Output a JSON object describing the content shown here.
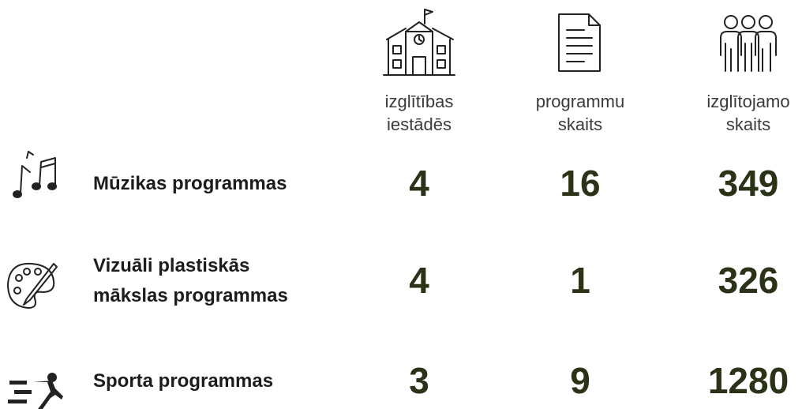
{
  "table": {
    "columns": [
      [
        "izglītības",
        "iestādēs"
      ],
      [
        "programmu",
        "skaits"
      ],
      [
        "izglītojamo",
        "skaits"
      ]
    ],
    "rows": [
      {
        "label": [
          "Mūzikas programmas"
        ],
        "values": [
          4,
          16,
          349
        ]
      },
      {
        "label": [
          "Vizuāli plastiskās",
          "mākslas programmas"
        ],
        "values": [
          4,
          1,
          326
        ]
      },
      {
        "label": [
          "Sporta programmas"
        ],
        "values": [
          3,
          9,
          1280
        ]
      }
    ]
  }
}
